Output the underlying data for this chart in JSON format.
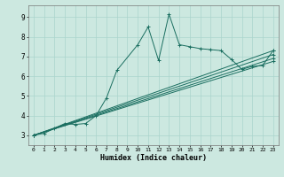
{
  "xlabel": "Humidex (Indice chaleur)",
  "bg_color": "#cce8e0",
  "line_color": "#1a6e60",
  "grid_color": "#aad4cc",
  "xlim": [
    -0.5,
    23.5
  ],
  "ylim": [
    2.5,
    9.6
  ],
  "xticks": [
    0,
    1,
    2,
    3,
    4,
    5,
    6,
    7,
    8,
    9,
    10,
    11,
    12,
    13,
    14,
    15,
    16,
    17,
    18,
    19,
    20,
    21,
    22,
    23
  ],
  "yticks": [
    3,
    4,
    5,
    6,
    7,
    8,
    9
  ],
  "main_line": {
    "x": [
      0,
      1,
      2,
      3,
      4,
      5,
      6,
      7,
      8,
      10,
      11,
      12,
      13,
      14,
      15,
      16,
      17,
      18,
      19,
      20,
      21,
      22,
      23
    ],
    "y": [
      3.0,
      3.1,
      3.35,
      3.6,
      3.55,
      3.6,
      4.0,
      4.9,
      6.3,
      7.6,
      8.5,
      6.8,
      9.15,
      7.6,
      7.5,
      7.4,
      7.35,
      7.3,
      6.85,
      6.35,
      6.5,
      6.55,
      7.3
    ]
  },
  "straight_lines": [
    {
      "x": [
        0,
        23
      ],
      "y": [
        3.0,
        7.3
      ]
    },
    {
      "x": [
        0,
        23
      ],
      "y": [
        3.0,
        7.1
      ]
    },
    {
      "x": [
        0,
        23
      ],
      "y": [
        3.0,
        6.9
      ]
    },
    {
      "x": [
        0,
        23
      ],
      "y": [
        3.0,
        6.75
      ]
    }
  ]
}
